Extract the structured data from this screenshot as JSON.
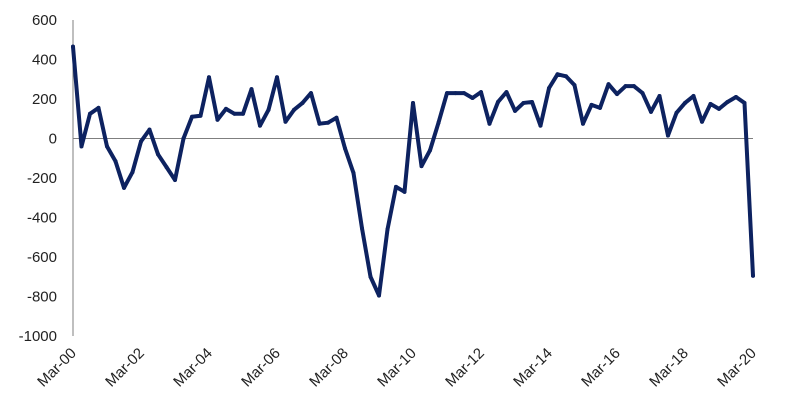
{
  "chart_data": {
    "type": "line",
    "title": "",
    "xlabel": "",
    "ylabel": "",
    "ylim": [
      -1000,
      600
    ],
    "y_ticks": [
      600,
      400,
      200,
      0,
      -200,
      -400,
      -600,
      -800,
      -1000
    ],
    "y_tick_labels": [
      "600",
      "400",
      "200",
      "0",
      "-200",
      "-400",
      "-600",
      "-800",
      "-1000"
    ],
    "x_range": [
      "2000-03",
      "2020-03"
    ],
    "x_ticks": [
      "2000-03",
      "2002-03",
      "2004-03",
      "2006-03",
      "2008-03",
      "2010-03",
      "2012-03",
      "2014-03",
      "2016-03",
      "2018-03",
      "2020-03"
    ],
    "x_tick_labels": [
      "Mar-00",
      "Mar-02",
      "Mar-04",
      "Mar-06",
      "Mar-08",
      "Mar-10",
      "Mar-12",
      "Mar-14",
      "Mar-16",
      "Mar-18",
      "Mar-20"
    ],
    "grid": false,
    "legend": "none",
    "series": [
      {
        "color": "#0d2260",
        "x": [
          "2000-03",
          "2000-06",
          "2000-09",
          "2000-12",
          "2001-03",
          "2001-06",
          "2001-09",
          "2001-12",
          "2002-03",
          "2002-06",
          "2002-09",
          "2002-12",
          "2003-03",
          "2003-06",
          "2003-09",
          "2003-12",
          "2004-03",
          "2004-06",
          "2004-09",
          "2004-12",
          "2005-03",
          "2005-06",
          "2005-09",
          "2005-12",
          "2006-03",
          "2006-06",
          "2006-09",
          "2006-12",
          "2007-03",
          "2007-06",
          "2007-09",
          "2007-12",
          "2008-03",
          "2008-06",
          "2008-09",
          "2008-12",
          "2009-03",
          "2009-06",
          "2009-09",
          "2009-12",
          "2010-03",
          "2010-06",
          "2010-09",
          "2010-12",
          "2011-03",
          "2011-06",
          "2011-09",
          "2011-12",
          "2012-03",
          "2012-06",
          "2012-09",
          "2012-12",
          "2013-03",
          "2013-06",
          "2013-09",
          "2013-12",
          "2014-03",
          "2014-06",
          "2014-09",
          "2014-12",
          "2015-03",
          "2015-06",
          "2015-09",
          "2015-12",
          "2016-03",
          "2016-06",
          "2016-09",
          "2016-12",
          "2017-03",
          "2017-06",
          "2017-09",
          "2017-12",
          "2018-03",
          "2018-06",
          "2018-09",
          "2018-12",
          "2019-03",
          "2019-06",
          "2019-09",
          "2019-12",
          "2020-03"
        ],
        "values": [
          465,
          -40,
          125,
          155,
          -40,
          -115,
          -250,
          -170,
          -15,
          45,
          -80,
          -145,
          -210,
          0,
          110,
          115,
          310,
          95,
          150,
          125,
          125,
          250,
          65,
          145,
          310,
          85,
          145,
          180,
          230,
          75,
          80,
          105,
          -50,
          -175,
          -455,
          -700,
          -795,
          -460,
          -245,
          -270,
          180,
          -140,
          -60,
          80,
          230,
          230,
          230,
          205,
          235,
          75,
          185,
          235,
          140,
          180,
          185,
          65,
          255,
          325,
          315,
          270,
          75,
          170,
          155,
          275,
          225,
          265,
          265,
          230,
          135,
          215,
          15,
          130,
          180,
          215,
          85,
          175,
          150,
          185,
          210,
          180,
          -695
        ]
      }
    ]
  }
}
